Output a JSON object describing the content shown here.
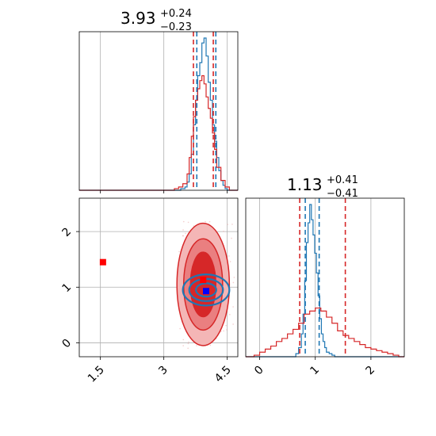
{
  "colors": {
    "truth": "#d62728",
    "model": "#1f77b4",
    "grid": "#b0b0b0"
  },
  "chart_data": [
    {
      "panel": "top-left",
      "type": "histogram",
      "parameter_index": 0,
      "title": {
        "median": "3.93",
        "plus": "+0.24",
        "minus": "−0.23"
      },
      "xlim": [
        1.0,
        4.75
      ],
      "xticks": [
        1.5,
        3.0,
        4.5
      ],
      "quantile_lines": {
        "red": [
          3.7,
          4.17
        ],
        "blue": [
          3.78,
          4.23
        ]
      },
      "series": [
        {
          "color": "#1f77b4",
          "bins": [
            3.3,
            3.4,
            3.5,
            3.55,
            3.6,
            3.65,
            3.7,
            3.75,
            3.8,
            3.85,
            3.9,
            3.95,
            4.0,
            4.05,
            4.1,
            4.15,
            4.2,
            4.25,
            4.3,
            4.35,
            4.4,
            4.45,
            4.5,
            4.6
          ],
          "heights": [
            0.0,
            0.01,
            0.02,
            0.05,
            0.1,
            0.22,
            0.4,
            0.55,
            0.7,
            0.78,
            0.9,
            0.93,
            0.82,
            0.66,
            0.55,
            0.4,
            0.3,
            0.2,
            0.12,
            0.06,
            0.03,
            0.01,
            0.0
          ]
        },
        {
          "color": "#d62728",
          "bins": [
            3.25,
            3.35,
            3.45,
            3.55,
            3.6,
            3.65,
            3.7,
            3.75,
            3.8,
            3.85,
            3.9,
            3.95,
            4.0,
            4.05,
            4.1,
            4.15,
            4.2,
            4.25,
            4.35,
            4.45,
            4.55,
            4.65
          ],
          "heights": [
            0.01,
            0.02,
            0.04,
            0.1,
            0.2,
            0.33,
            0.45,
            0.55,
            0.62,
            0.67,
            0.7,
            0.65,
            0.57,
            0.5,
            0.44,
            0.35,
            0.25,
            0.14,
            0.06,
            0.02,
            0.0
          ]
        }
      ]
    },
    {
      "panel": "bottom-left",
      "type": "contour-scatter",
      "xlim": [
        1.0,
        4.75
      ],
      "ylim": [
        -0.25,
        2.6
      ],
      "xticks": [
        1.5,
        3.0,
        4.5
      ],
      "yticks": [
        0,
        1,
        2
      ],
      "red_markers": [
        {
          "x": 1.56,
          "y": 1.45
        },
        {
          "x": 3.93,
          "y": 1.13
        }
      ],
      "blue_marker": {
        "x": 4.0,
        "y": 0.93
      },
      "red_contours": [
        {
          "cx": 3.93,
          "cy": 1.05,
          "rx": 0.62,
          "ry": 1.1,
          "fill": "#f4b6b6"
        },
        {
          "cx": 3.93,
          "cy": 1.05,
          "rx": 0.46,
          "ry": 0.82,
          "fill": "#ea7f80"
        },
        {
          "cx": 3.93,
          "cy": 1.05,
          "rx": 0.3,
          "ry": 0.58,
          "fill": "#d62728"
        }
      ],
      "blue_contours": [
        {
          "cx": 4.0,
          "cy": 0.95,
          "rx": 0.55,
          "ry": 0.28
        },
        {
          "cx": 4.0,
          "cy": 0.95,
          "rx": 0.4,
          "ry": 0.2
        },
        {
          "cx": 4.0,
          "cy": 0.95,
          "rx": 0.24,
          "ry": 0.12
        }
      ]
    },
    {
      "panel": "bottom-right",
      "type": "histogram",
      "parameter_index": 1,
      "title": {
        "median": "1.13",
        "plus": "+0.41",
        "minus": "−0.41"
      },
      "xlim": [
        -0.25,
        2.6
      ],
      "xticks": [
        0,
        1,
        2
      ],
      "quantile_lines": {
        "red": [
          0.72,
          1.54
        ],
        "blue": [
          0.82,
          1.07
        ]
      },
      "series": [
        {
          "color": "#1f77b4",
          "bins": [
            0.6,
            0.65,
            0.7,
            0.75,
            0.78,
            0.81,
            0.84,
            0.87,
            0.9,
            0.93,
            0.96,
            0.99,
            1.02,
            1.05,
            1.08,
            1.11,
            1.14,
            1.17,
            1.2,
            1.25,
            1.3,
            1.35,
            1.4
          ],
          "heights": [
            0.0,
            0.02,
            0.06,
            0.15,
            0.28,
            0.5,
            0.75,
            0.88,
            1.0,
            0.9,
            0.8,
            0.68,
            0.55,
            0.4,
            0.25,
            0.15,
            0.1,
            0.06,
            0.03,
            0.02,
            0.01,
            0.0
          ]
        },
        {
          "color": "#d62728",
          "bins": [
            -0.1,
            0.0,
            0.1,
            0.2,
            0.3,
            0.4,
            0.5,
            0.6,
            0.7,
            0.8,
            0.9,
            1.0,
            1.1,
            1.2,
            1.3,
            1.4,
            1.5,
            1.6,
            1.7,
            1.8,
            1.9,
            2.0,
            2.1,
            2.2,
            2.3,
            2.4,
            2.5
          ],
          "heights": [
            0.01,
            0.03,
            0.05,
            0.07,
            0.1,
            0.12,
            0.15,
            0.18,
            0.22,
            0.28,
            0.3,
            0.32,
            0.3,
            0.26,
            0.22,
            0.17,
            0.14,
            0.12,
            0.1,
            0.08,
            0.06,
            0.05,
            0.04,
            0.03,
            0.02,
            0.01
          ]
        }
      ]
    }
  ]
}
